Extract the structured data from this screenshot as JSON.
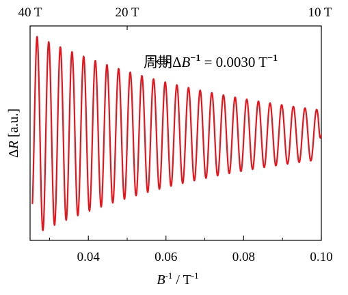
{
  "chart_data": {
    "type": "line",
    "title": "",
    "xlabel": {
      "var": "B",
      "exp": "-1",
      "sep": " / ",
      "unit": "T",
      "unit_exp": "-1"
    },
    "ylabel": {
      "delta": "Δ",
      "var": "R",
      "unit": " [a.u.]"
    },
    "xlim": [
      0.025,
      0.1
    ],
    "ylim": [
      -1.3,
      1.3
    ],
    "x_ticks": [
      {
        "value": 0.04,
        "label": "0.04"
      },
      {
        "value": 0.06,
        "label": "0.06"
      },
      {
        "value": 0.08,
        "label": "0.08"
      },
      {
        "value": 0.1,
        "label": "0.10"
      }
    ],
    "top_ticks": [
      {
        "value": 0.025,
        "label": "40 T"
      },
      {
        "value": 0.05,
        "label": "20 T"
      },
      {
        "value": 0.1,
        "label": "10 T"
      }
    ],
    "grid": false,
    "legend": "none",
    "series": [
      {
        "color": "#e8141c",
        "oscillation_period": 0.003,
        "amplitude_start": 1.22,
        "amplitude_end": 0.3,
        "baseline": -0.02,
        "y_samples": [
          {
            "x": 0.0256,
            "y": -0.95
          },
          {
            "x": 0.0268,
            "y": 1.18
          },
          {
            "x": 0.0283,
            "y": -1.15
          },
          {
            "x": 0.0298,
            "y": 1.12
          },
          {
            "x": 0.04,
            "y": 0.8
          },
          {
            "x": 0.0415,
            "y": -0.82
          },
          {
            "x": 0.06,
            "y": 0.58
          },
          {
            "x": 0.0615,
            "y": -0.56
          },
          {
            "x": 0.08,
            "y": 0.42
          },
          {
            "x": 0.0815,
            "y": -0.4
          },
          {
            "x": 0.097,
            "y": 0.3
          },
          {
            "x": 0.0985,
            "y": -0.3
          },
          {
            "x": 0.1,
            "y": -0.02
          }
        ]
      }
    ],
    "annotation": {
      "prefix": "周期",
      "delta": "Δ",
      "var": "B",
      "exp": "−1",
      "equals": " = 0.0030 T",
      "unit_exp": "−1",
      "arrow_x": [
        0.0575,
        0.0605
      ],
      "arrow_y": 0.9
    }
  }
}
